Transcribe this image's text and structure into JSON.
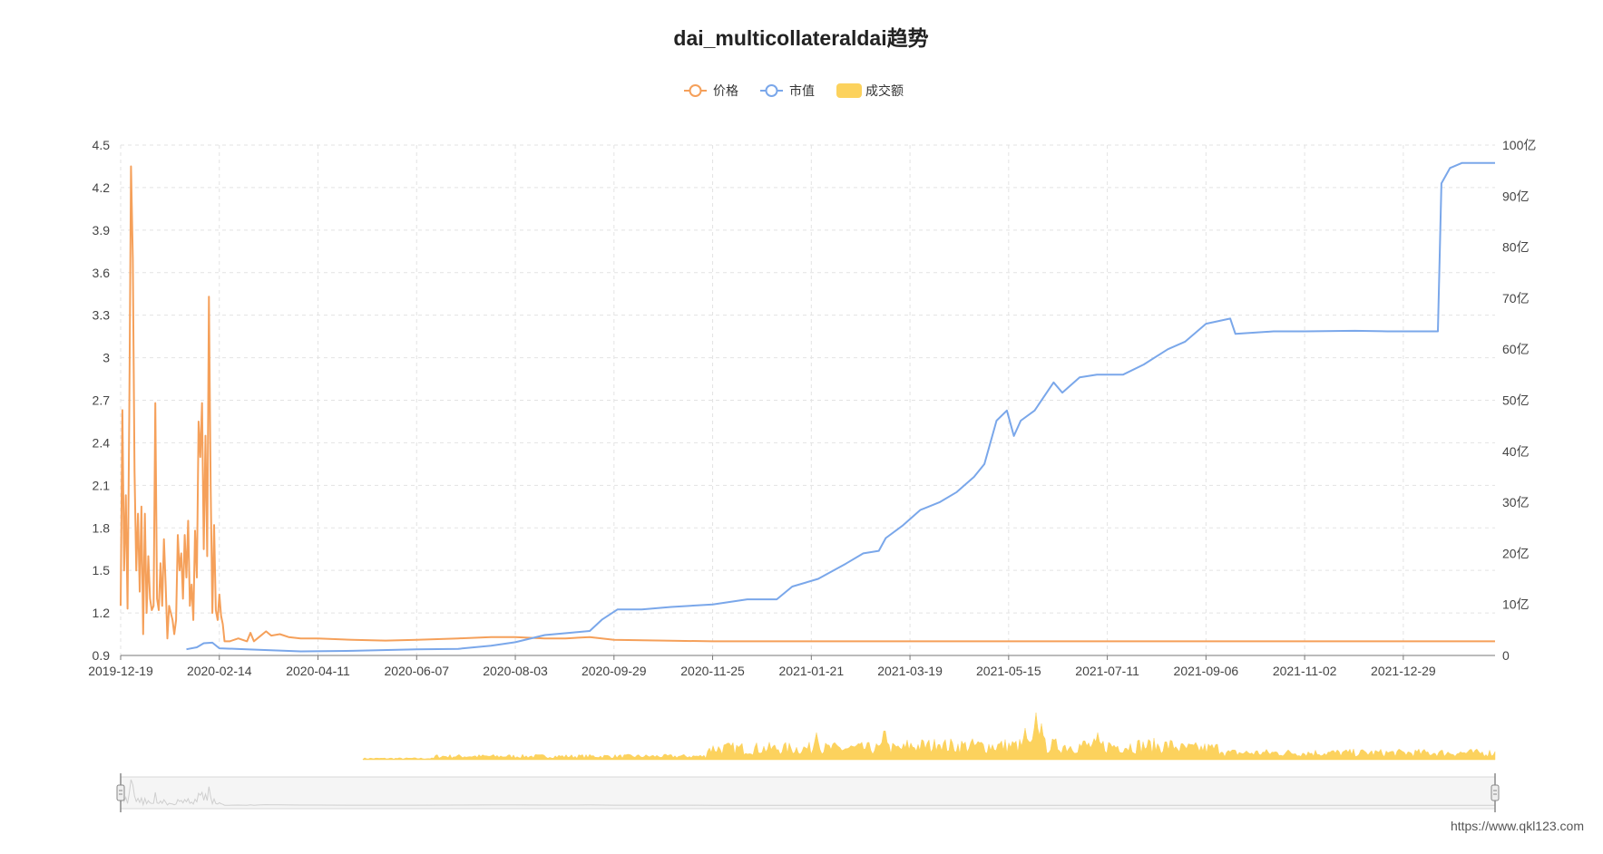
{
  "chart_data": {
    "type": "line",
    "title": "dai_multicollateraldai趋势",
    "legend": {
      "placement": "top-center",
      "items": [
        {
          "name": "价格",
          "color": "#f5a05a",
          "shape": "line-circle"
        },
        {
          "name": "市值",
          "color": "#7aa7ea",
          "shape": "line-circle"
        },
        {
          "name": "成交额",
          "color": "#fcd25d",
          "shape": "rounded-rect"
        }
      ]
    },
    "x_axis": {
      "type": "date",
      "range": [
        "2019-12-19",
        "2022-02-20"
      ],
      "tick_labels": [
        "2019-12-19",
        "2020-02-14",
        "2020-04-11",
        "2020-06-07",
        "2020-08-03",
        "2020-09-29",
        "2020-11-25",
        "2021-01-21",
        "2021-03-19",
        "2021-05-15",
        "2021-07-11",
        "2021-09-06",
        "2021-11-02",
        "2021-12-29"
      ]
    },
    "y_axis_left": {
      "name": "价格",
      "range": [
        0.9,
        4.5
      ],
      "tick_labels": [
        "0.9",
        "1.2",
        "1.5",
        "1.8",
        "2.1",
        "2.4",
        "2.7",
        "3",
        "3.3",
        "3.6",
        "3.9",
        "4.2",
        "4.5"
      ]
    },
    "y_axis_right": {
      "name": "市值",
      "unit": "亿",
      "range": [
        0,
        100
      ],
      "tick_labels": [
        "0",
        "10亿",
        "20亿",
        "30亿",
        "40亿",
        "50亿",
        "60亿",
        "70亿",
        "80亿",
        "90亿",
        "100亿"
      ]
    },
    "grid": true,
    "series": [
      {
        "name": "价格",
        "axis": "left",
        "color": "#f5a05a",
        "points": [
          [
            "2019-12-19",
            1.25
          ],
          [
            "2019-12-20",
            2.63
          ],
          [
            "2019-12-21",
            1.5
          ],
          [
            "2019-12-22",
            2.03
          ],
          [
            "2019-12-23",
            1.23
          ],
          [
            "2019-12-24",
            2.6
          ],
          [
            "2019-12-25",
            4.35
          ],
          [
            "2019-12-26",
            3.7
          ],
          [
            "2019-12-27",
            2.2
          ],
          [
            "2019-12-28",
            1.5
          ],
          [
            "2019-12-29",
            1.9
          ],
          [
            "2019-12-30",
            1.35
          ],
          [
            "2019-12-31",
            1.95
          ],
          [
            "2020-01-01",
            1.05
          ],
          [
            "2020-01-02",
            1.9
          ],
          [
            "2020-01-03",
            1.2
          ],
          [
            "2020-01-04",
            1.6
          ],
          [
            "2020-01-05",
            1.3
          ],
          [
            "2020-01-06",
            1.22
          ],
          [
            "2020-01-07",
            1.25
          ],
          [
            "2020-01-08",
            2.68
          ],
          [
            "2020-01-09",
            1.3
          ],
          [
            "2020-01-10",
            1.22
          ],
          [
            "2020-01-11",
            1.55
          ],
          [
            "2020-01-12",
            1.25
          ],
          [
            "2020-01-13",
            1.72
          ],
          [
            "2020-01-14",
            1.4
          ],
          [
            "2020-01-15",
            1.02
          ],
          [
            "2020-01-16",
            1.25
          ],
          [
            "2020-01-17",
            1.2
          ],
          [
            "2020-01-18",
            1.15
          ],
          [
            "2020-01-19",
            1.05
          ],
          [
            "2020-01-20",
            1.15
          ],
          [
            "2020-01-21",
            1.75
          ],
          [
            "2020-01-22",
            1.5
          ],
          [
            "2020-01-23",
            1.62
          ],
          [
            "2020-01-24",
            1.3
          ],
          [
            "2020-01-25",
            1.75
          ],
          [
            "2020-01-26",
            1.45
          ],
          [
            "2020-01-27",
            1.85
          ],
          [
            "2020-01-28",
            1.25
          ],
          [
            "2020-01-29",
            1.4
          ],
          [
            "2020-01-30",
            1.15
          ],
          [
            "2020-01-31",
            1.78
          ],
          [
            "2020-02-01",
            1.45
          ],
          [
            "2020-02-02",
            2.55
          ],
          [
            "2020-02-03",
            2.3
          ],
          [
            "2020-02-04",
            2.68
          ],
          [
            "2020-02-05",
            1.65
          ],
          [
            "2020-02-06",
            2.45
          ],
          [
            "2020-02-07",
            1.6
          ],
          [
            "2020-02-08",
            3.43
          ],
          [
            "2020-02-09",
            2.1
          ],
          [
            "2020-02-10",
            1.2
          ],
          [
            "2020-02-11",
            1.82
          ],
          [
            "2020-02-12",
            1.22
          ],
          [
            "2020-02-13",
            1.15
          ],
          [
            "2020-02-14",
            1.33
          ],
          [
            "2020-02-15",
            1.18
          ],
          [
            "2020-02-16",
            1.12
          ],
          [
            "2020-02-17",
            1.0
          ],
          [
            "2020-02-20",
            1.0
          ],
          [
            "2020-02-25",
            1.02
          ],
          [
            "2020-03-01",
            1.0
          ],
          [
            "2020-03-03",
            1.06
          ],
          [
            "2020-03-05",
            1.0
          ],
          [
            "2020-03-08",
            1.03
          ],
          [
            "2020-03-12",
            1.07
          ],
          [
            "2020-03-15",
            1.04
          ],
          [
            "2020-03-20",
            1.05
          ],
          [
            "2020-03-25",
            1.03
          ],
          [
            "2020-04-01",
            1.02
          ],
          [
            "2020-04-11",
            1.02
          ],
          [
            "2020-05-01",
            1.01
          ],
          [
            "2020-05-20",
            1.005
          ],
          [
            "2020-06-07",
            1.01
          ],
          [
            "2020-07-01",
            1.02
          ],
          [
            "2020-07-20",
            1.03
          ],
          [
            "2020-08-03",
            1.03
          ],
          [
            "2020-08-20",
            1.02
          ],
          [
            "2020-09-01",
            1.02
          ],
          [
            "2020-09-15",
            1.03
          ],
          [
            "2020-09-29",
            1.01
          ],
          [
            "2020-11-25",
            1.0
          ],
          [
            "2021-01-21",
            1.0
          ],
          [
            "2021-03-19",
            1.0
          ],
          [
            "2021-05-15",
            1.0
          ],
          [
            "2021-07-11",
            1.0
          ],
          [
            "2021-09-06",
            1.0
          ],
          [
            "2021-11-02",
            1.0
          ],
          [
            "2021-12-29",
            1.0
          ],
          [
            "2022-02-20",
            1.0
          ]
        ]
      },
      {
        "name": "市值",
        "axis": "right",
        "unit": "亿",
        "color": "#7aa7ea",
        "points": [
          [
            "2020-01-26",
            1.2
          ],
          [
            "2020-02-01",
            1.6
          ],
          [
            "2020-02-05",
            2.4
          ],
          [
            "2020-02-10",
            2.5
          ],
          [
            "2020-02-14",
            1.4
          ],
          [
            "2020-03-01",
            1.2
          ],
          [
            "2020-04-01",
            0.8
          ],
          [
            "2020-05-01",
            0.9
          ],
          [
            "2020-06-07",
            1.2
          ],
          [
            "2020-07-01",
            1.3
          ],
          [
            "2020-07-20",
            1.9
          ],
          [
            "2020-08-03",
            2.6
          ],
          [
            "2020-08-20",
            4.0
          ],
          [
            "2020-09-05",
            4.5
          ],
          [
            "2020-09-15",
            4.8
          ],
          [
            "2020-09-22",
            7.0
          ],
          [
            "2020-10-01",
            9.0
          ],
          [
            "2020-10-15",
            9.0
          ],
          [
            "2020-11-01",
            9.5
          ],
          [
            "2020-11-25",
            10.0
          ],
          [
            "2020-12-15",
            11.0
          ],
          [
            "2021-01-01",
            11.0
          ],
          [
            "2021-01-10",
            13.5
          ],
          [
            "2021-01-25",
            15.0
          ],
          [
            "2021-02-10",
            18.0
          ],
          [
            "2021-02-20",
            20.0
          ],
          [
            "2021-03-01",
            20.5
          ],
          [
            "2021-03-05",
            23.0
          ],
          [
            "2021-03-15",
            25.5
          ],
          [
            "2021-03-25",
            28.5
          ],
          [
            "2021-04-05",
            30.0
          ],
          [
            "2021-04-15",
            32.0
          ],
          [
            "2021-04-25",
            35.0
          ],
          [
            "2021-05-01",
            37.5
          ],
          [
            "2021-05-08",
            46.0
          ],
          [
            "2021-05-14",
            48.0
          ],
          [
            "2021-05-18",
            43.0
          ],
          [
            "2021-05-22",
            46.0
          ],
          [
            "2021-05-30",
            48.0
          ],
          [
            "2021-06-10",
            53.5
          ],
          [
            "2021-06-15",
            51.5
          ],
          [
            "2021-06-25",
            54.5
          ],
          [
            "2021-07-05",
            55.0
          ],
          [
            "2021-07-20",
            55.0
          ],
          [
            "2021-08-01",
            57.0
          ],
          [
            "2021-08-15",
            60.0
          ],
          [
            "2021-08-25",
            61.5
          ],
          [
            "2021-09-06",
            65.0
          ],
          [
            "2021-09-20",
            66.0
          ],
          [
            "2021-09-23",
            63.0
          ],
          [
            "2021-10-15",
            63.5
          ],
          [
            "2021-11-02",
            63.5
          ],
          [
            "2021-12-01",
            63.6
          ],
          [
            "2021-12-20",
            63.5
          ],
          [
            "2022-01-18",
            63.5
          ],
          [
            "2022-01-20",
            92.5
          ],
          [
            "2022-01-25",
            95.5
          ],
          [
            "2022-02-01",
            96.5
          ],
          [
            "2022-02-20",
            96.5
          ]
        ]
      }
    ],
    "volume_series": {
      "name": "成交额",
      "color": "#fcd25d"
    }
  },
  "watermark": "https://www.qkl123.com"
}
